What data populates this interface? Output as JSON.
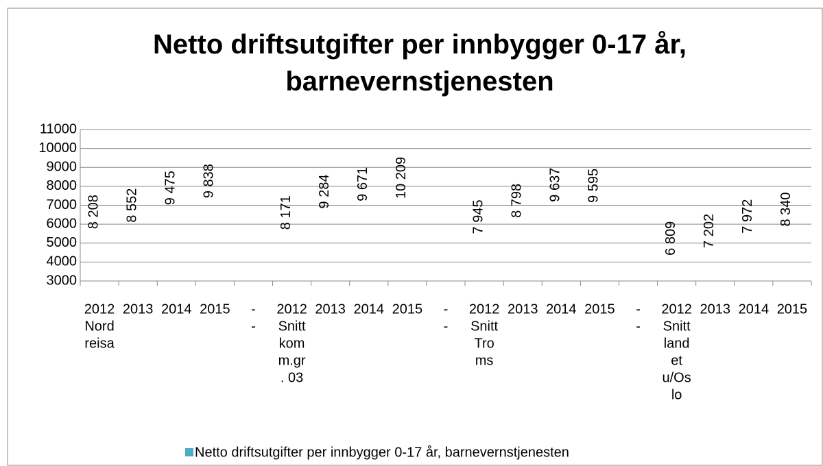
{
  "chart_data": {
    "type": "bar",
    "title": "Netto driftsutgifter per innbygger 0-17 år, barnevernstjenesten",
    "categories": [
      [
        "2012",
        "Nord",
        "reisa"
      ],
      [
        "2013"
      ],
      [
        "2014"
      ],
      [
        "2015"
      ],
      [
        "-",
        "-"
      ],
      [
        "2012",
        "Snitt",
        "kom",
        "m.gr",
        ". 03"
      ],
      [
        "2013"
      ],
      [
        "2014"
      ],
      [
        "2015"
      ],
      [
        "-",
        "-"
      ],
      [
        "2012",
        "Snitt",
        "Tro",
        "ms"
      ],
      [
        "2013"
      ],
      [
        "2014"
      ],
      [
        "2015"
      ],
      [
        "-",
        "-"
      ],
      [
        "2012",
        "Snitt",
        "land",
        "et",
        "u/Os",
        "lo"
      ],
      [
        "2013"
      ],
      [
        "2014"
      ],
      [
        "2015"
      ]
    ],
    "series": [
      {
        "name": "Netto driftsutgifter per innbygger 0-17 år, barnevernstjenesten",
        "color": "#4bacc6",
        "values": [
          8208,
          8552,
          9475,
          9838,
          null,
          8171,
          9284,
          9671,
          10209,
          null,
          7945,
          8798,
          9637,
          9595,
          null,
          6809,
          7202,
          7972,
          8340
        ],
        "value_labels": [
          "8 208",
          "8 552",
          "9 475",
          "9 838",
          null,
          "8 171",
          "9 284",
          "9 671",
          "10 209",
          null,
          "7 945",
          "8 798",
          "9 637",
          "9 595",
          null,
          "6 809",
          "7 202",
          "7 972",
          "8 340"
        ]
      }
    ],
    "ylim": [
      3000,
      11000
    ],
    "yticks": [
      3000,
      4000,
      5000,
      6000,
      7000,
      8000,
      9000,
      10000,
      11000
    ],
    "grid": true,
    "legend": "bottom"
  }
}
